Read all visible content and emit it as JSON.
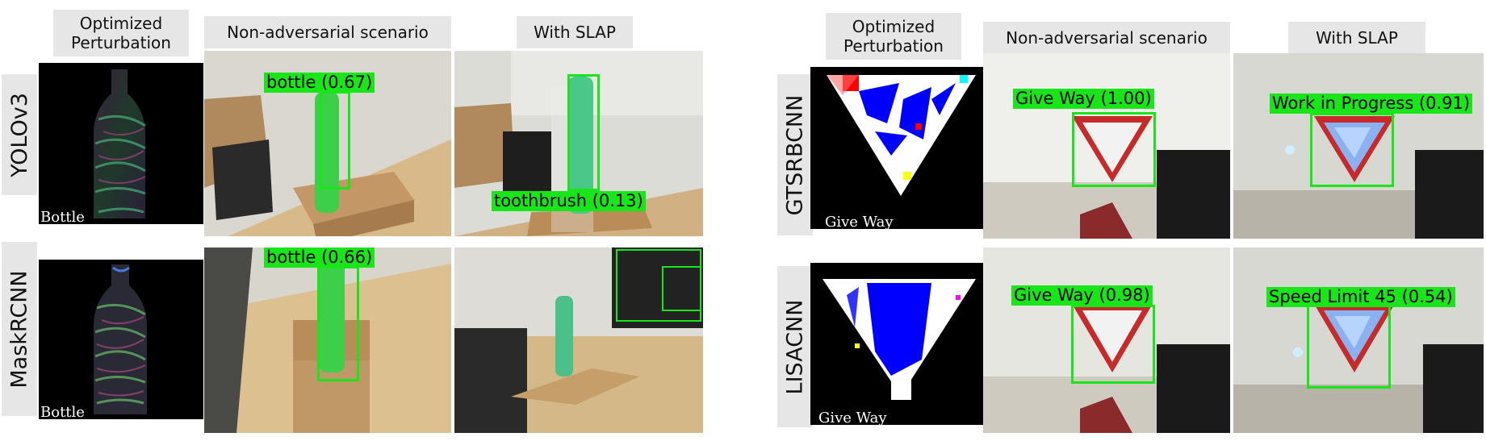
{
  "left_figure": {
    "headers": {
      "perturbation": "Optimized\nPerturbation",
      "non_adversarial": "Non-adversarial scenario",
      "with_slap": "With SLAP"
    },
    "rows": [
      {
        "model": "YOLOv3",
        "perturbation_caption": "Bottle",
        "non_adv_label": "bottle (0.67)",
        "slap_label": "toothbrush (0.13)"
      },
      {
        "model": "MaskRCNN",
        "perturbation_caption": "Bottle",
        "non_adv_label": "bottle (0.66)",
        "slap_label": ""
      }
    ]
  },
  "right_figure": {
    "headers": {
      "perturbation": "Optimized\nPerturbation",
      "non_adversarial": "Non-adversarial scenario",
      "with_slap": "With SLAP"
    },
    "rows": [
      {
        "model": "GTSRBCNN",
        "perturbation_caption": "Give Way",
        "non_adv_label": "Give Way (1.00)",
        "slap_label": "Work in Progress (0.91)"
      },
      {
        "model": "LISACNN",
        "perturbation_caption": "Give Way",
        "non_adv_label": "Give Way (0.98)",
        "slap_label": "Speed Limit 45 (0.54)"
      }
    ]
  },
  "colors": {
    "detection_green": "#19e619",
    "header_gray": "#e6e6e6",
    "perturb_blue": "#0000ff"
  }
}
